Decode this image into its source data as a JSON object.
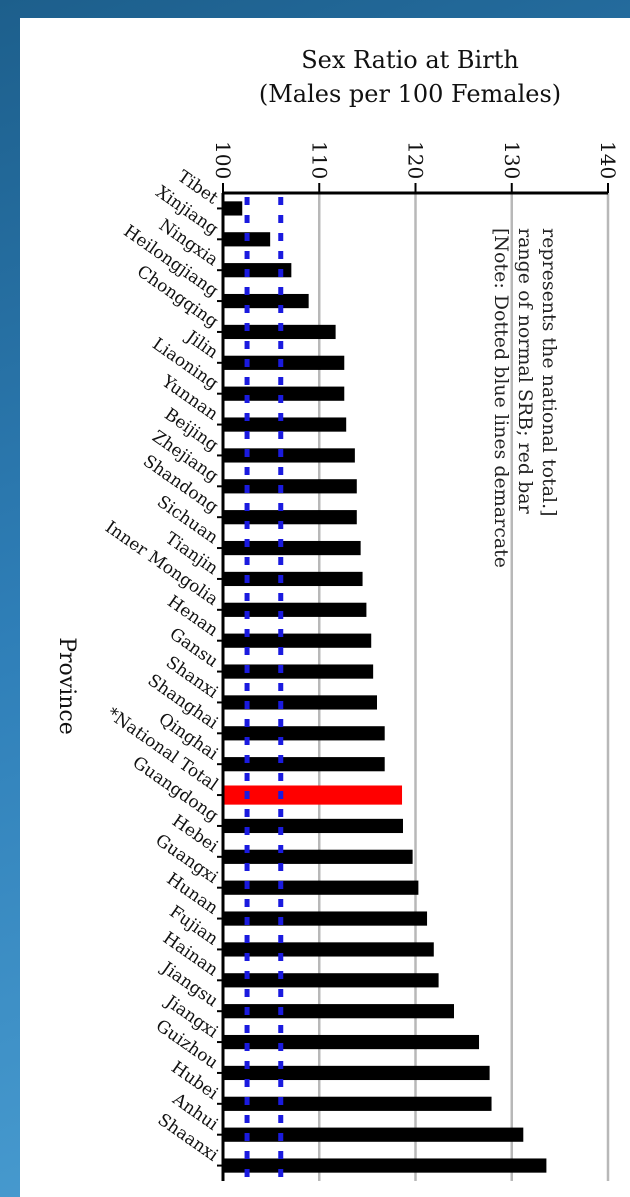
{
  "chart_data": {
    "type": "bar",
    "orientation": "horizontal",
    "title": "Sex Ratio at Birth",
    "subtitle": "(Males per 100 Females)",
    "ylabel": "Province",
    "xlim": [
      100,
      140
    ],
    "xticks": [
      "100",
      "110",
      "120",
      "130",
      "140"
    ],
    "grid": true,
    "categories": [
      "Tibet",
      "Xinjiang",
      "Ningxia",
      "Heilongjiang",
      "Chongqing",
      "Jilin",
      "Liaoning",
      "Yunnan",
      "Beijing",
      "Zhejiang",
      "Shandong",
      "Sichuan",
      "Tianjin",
      "Inner Mongolia",
      "Henan",
      "Gansu",
      "Shanxi",
      "Shanghai",
      "Qinghai",
      "*National Total",
      "Guangdong",
      "Hebei",
      "Guangxi",
      "Hunan",
      "Fujian",
      "Hainan",
      "Jiangsu",
      "Jiangxi",
      "Guizhou",
      "Hubei",
      "Anhui",
      "Shaanxi"
    ],
    "values": [
      102.0,
      104.9,
      107.1,
      108.9,
      111.7,
      112.6,
      112.6,
      112.8,
      113.7,
      113.9,
      113.9,
      114.3,
      114.5,
      114.9,
      115.4,
      115.6,
      116.0,
      116.8,
      116.8,
      118.6,
      118.7,
      119.7,
      120.3,
      121.2,
      121.9,
      122.4,
      124.0,
      126.6,
      127.7,
      127.9,
      131.2,
      133.6
    ],
    "highlight": {
      "category": "*National Total",
      "color": "#ff0000"
    },
    "bar_color": "#000000",
    "normal_range_lines": {
      "values": [
        102.5,
        106
      ],
      "color": "#1a1adf",
      "style": "dotted"
    },
    "annotation": "[Note: Dotted blue lines demarcate range of normal SRB; red bar represents the national total.]"
  }
}
